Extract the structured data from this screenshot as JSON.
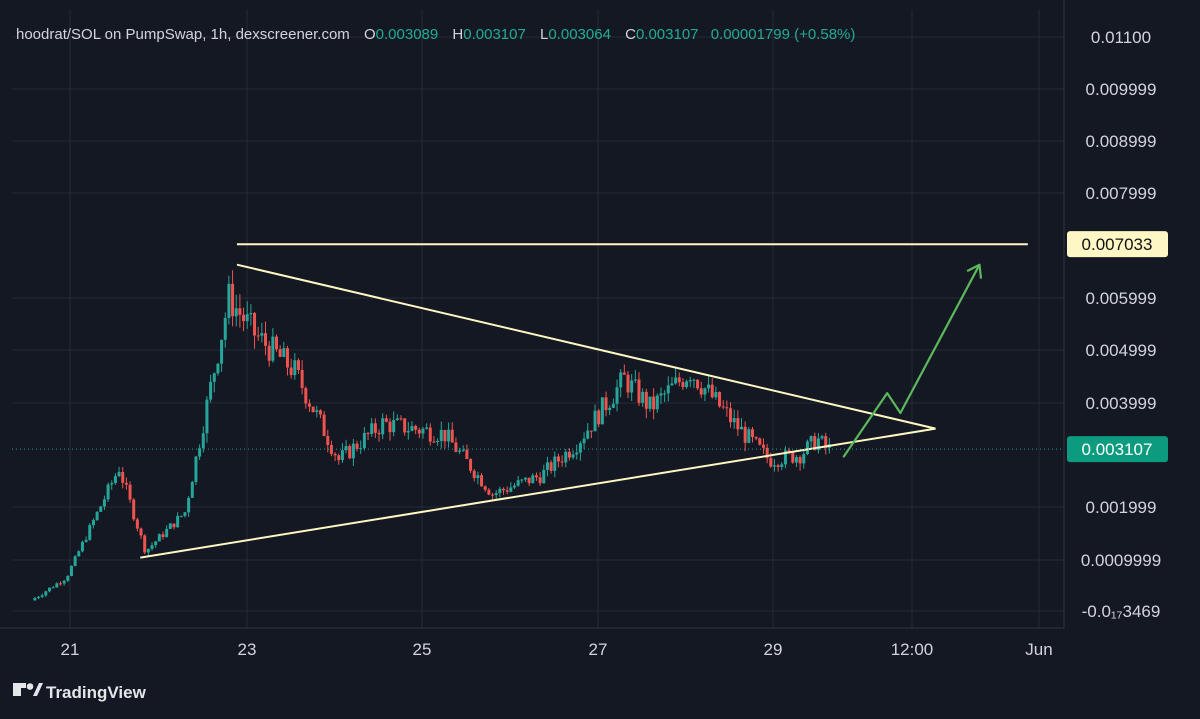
{
  "legend": {
    "title": "hoodrat/SOL on PumpSwap, 1h, dexscreener.com",
    "o_label": "O",
    "o_value": "0.003089",
    "h_label": "H",
    "h_value": "0.003107",
    "l_label": "L",
    "l_value": "0.003064",
    "c_label": "C",
    "c_value": "0.003107",
    "change": "0.00001799 (+0.58%)"
  },
  "brand": {
    "name": "TradingView",
    "logo_icon": "tradingview-logo-icon"
  },
  "colors": {
    "background": "#141822",
    "grid": "#262a35",
    "up": "#26a69a",
    "down": "#ef5350",
    "annotation_line": "#fdf7c3",
    "projection_arrow": "#5cb85c",
    "last_price_badge": "#0d9b7f",
    "level_badge": "#fef6c4"
  },
  "chart_data": {
    "type": "candlestick",
    "title": "hoodrat/SOL on PumpSwap, 1h, dexscreener.com",
    "xlabel": "",
    "ylabel": "",
    "x_ticks": [
      "21",
      "23",
      "25",
      "27",
      "29",
      "12:00",
      "Jun"
    ],
    "y_ticks": [
      "0.01100",
      "0.009999",
      "0.008999",
      "0.007999",
      "0.005999",
      "0.004999",
      "0.003999",
      "0.001999",
      "0.0009999",
      "-0.0₁₇3469"
    ],
    "ylim": [
      -0.0003,
      0.0114
    ],
    "grid": true,
    "last_price": 0.003107,
    "last_price_label": "0.003107",
    "resistance_level": 0.007033,
    "resistance_label": "0.007033",
    "trendlines": [
      {
        "kind": "resistance",
        "points": [
          [
            "Day 22.9",
            0.00703
          ],
          [
            "Day 31.9",
            0.00703
          ]
        ]
      },
      {
        "kind": "descending",
        "points": [
          [
            "Day 22.9",
            0.00664
          ],
          [
            "Day 30.85",
            0.0035
          ]
        ]
      },
      {
        "kind": "ascending",
        "points": [
          [
            "Day 21.8",
            0.00103
          ],
          [
            "Day 30.85",
            0.0035
          ]
        ]
      }
    ],
    "projection": [
      {
        "x": "Day 29.8",
        "y": 0.00295
      },
      {
        "x": "Day 30.3",
        "y": 0.00418
      },
      {
        "x": "Day 30.45",
        "y": 0.0038
      },
      {
        "x": "Day 31.35",
        "y": 0.00664
      }
    ],
    "key_prices": [
      {
        "x": "Day 20.6",
        "y": 0.00021
      },
      {
        "x": "Day 21.0",
        "y": 0.00065
      },
      {
        "x": "Day 21.6",
        "y": 0.00275
      },
      {
        "x": "Day 21.9",
        "y": 0.00115
      },
      {
        "x": "Day 22.35",
        "y": 0.0019
      },
      {
        "x": "Day 22.85",
        "y": 0.006
      },
      {
        "x": "Day 23.15",
        "y": 0.0053
      },
      {
        "x": "Day 23.6",
        "y": 0.0046
      },
      {
        "x": "Day 24.1",
        "y": 0.0029
      },
      {
        "x": "Day 24.6",
        "y": 0.0036
      },
      {
        "x": "Day 25.3",
        "y": 0.0034
      },
      {
        "x": "Day 25.85",
        "y": 0.00225
      },
      {
        "x": "Day 26.4",
        "y": 0.0026
      },
      {
        "x": "Day 26.8",
        "y": 0.0032
      },
      {
        "x": "Day 27.35",
        "y": 0.00445
      },
      {
        "x": "Day 27.65",
        "y": 0.0039
      },
      {
        "x": "Day 28.1",
        "y": 0.0046
      },
      {
        "x": "Day 28.6",
        "y": 0.0036
      },
      {
        "x": "Day 29.0",
        "y": 0.0029
      },
      {
        "x": "Day 29.35",
        "y": 0.003
      },
      {
        "x": "Day 29.55",
        "y": 0.0033
      },
      {
        "x": "Day 29.65",
        "y": 0.00311
      }
    ]
  }
}
